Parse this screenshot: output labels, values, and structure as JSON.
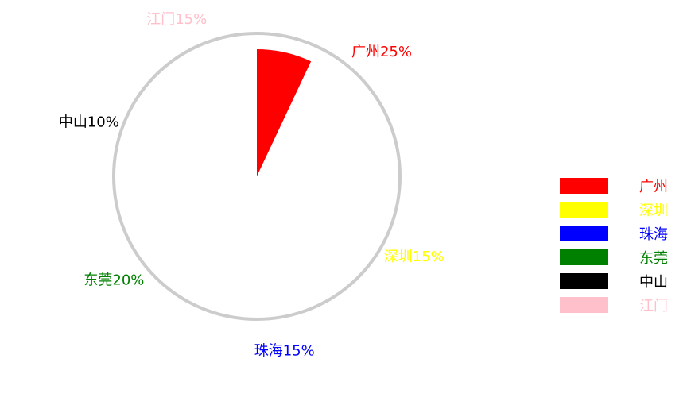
{
  "chart_data": {
    "type": "pie",
    "categories": [
      "广州",
      "深圳",
      "珠海",
      "东莞",
      "中山",
      "江门"
    ],
    "values": [
      25,
      15,
      15,
      20,
      10,
      15
    ],
    "units": "%",
    "colors": [
      "#ff0000",
      "#ffff00",
      "#0000ff",
      "#008000",
      "#000000",
      "#ffc0cb"
    ],
    "labels": [
      "广州25%",
      "深圳15%",
      "珠海15%",
      "东莞20%",
      "中山10%",
      "江门15%"
    ],
    "drawn_fraction": 0.07,
    "outline_color": "#cccccc",
    "legend": {
      "placement": "right",
      "entries": [
        "广州",
        "深圳",
        "珠海",
        "东莞",
        "中山",
        "江门"
      ]
    }
  }
}
